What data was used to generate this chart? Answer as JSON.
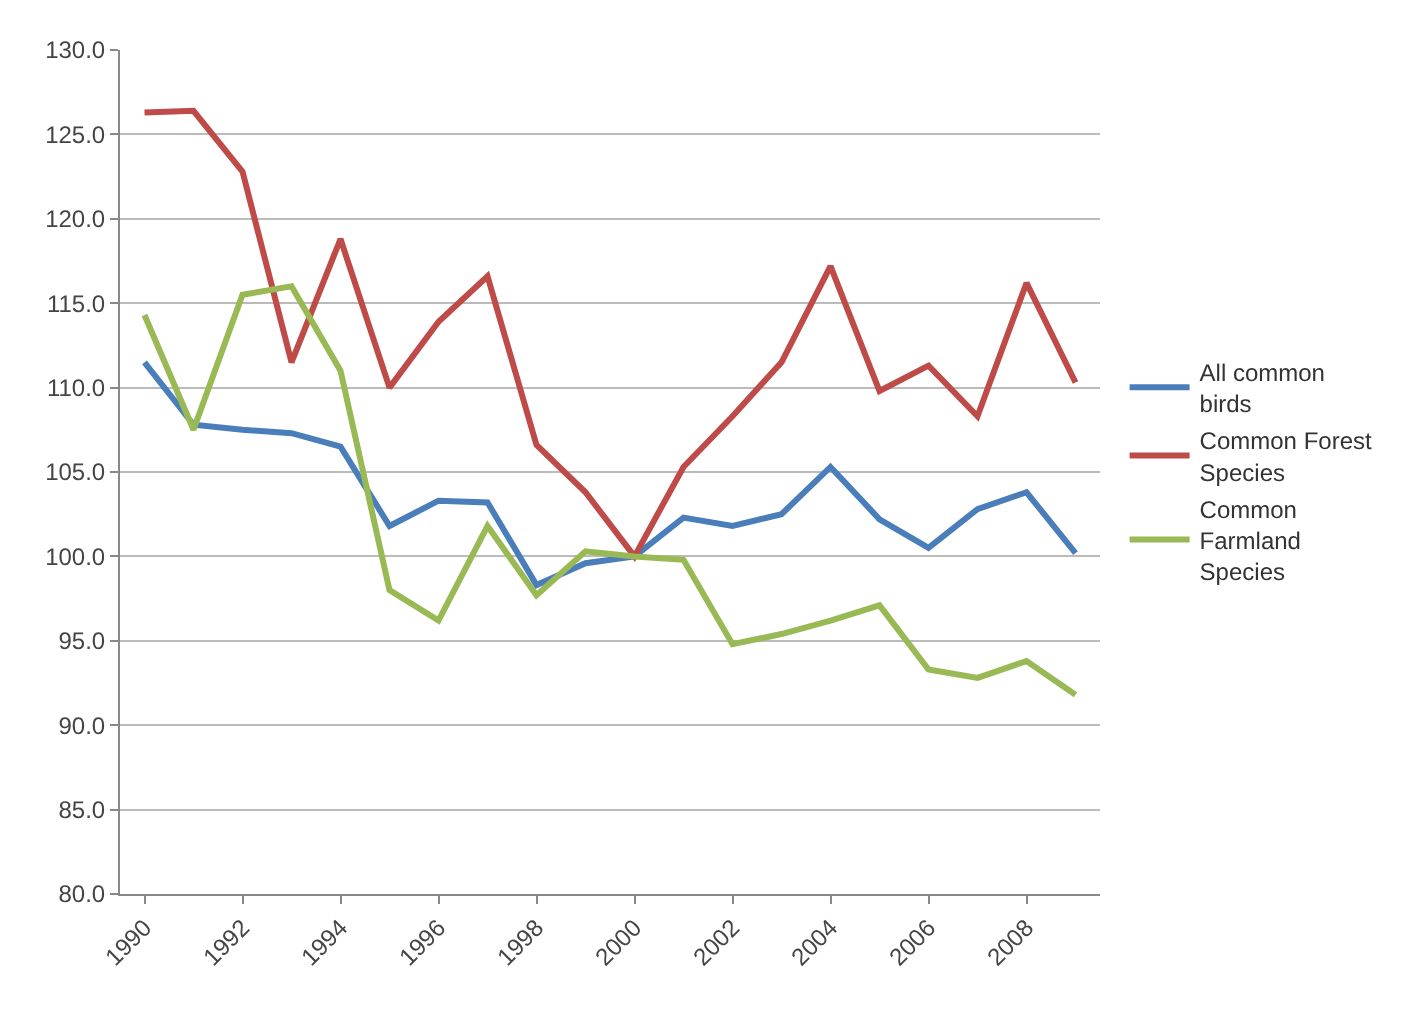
{
  "chart_data": {
    "type": "line",
    "categories": [
      "1990",
      null,
      "1992",
      null,
      "1994",
      null,
      "1996",
      null,
      "1998",
      null,
      "2000",
      null,
      "2002",
      null,
      "2004",
      null,
      "2006",
      null,
      "2008",
      null
    ],
    "series": [
      {
        "name": "All common birds",
        "color": "#4a7ebb",
        "values": [
          111.5,
          107.8,
          107.5,
          107.3,
          106.5,
          101.8,
          103.3,
          103.2,
          98.3,
          99.6,
          100.0,
          102.3,
          101.8,
          102.5,
          105.3,
          102.2,
          100.5,
          102.8,
          103.8,
          100.2
        ]
      },
      {
        "name": "Common Forest Species",
        "color": "#be4b48",
        "values": [
          126.3,
          126.4,
          122.8,
          111.5,
          118.8,
          110.0,
          113.9,
          116.6,
          106.6,
          103.8,
          100.0,
          105.3,
          108.3,
          111.5,
          117.2,
          109.8,
          111.3,
          108.3,
          116.2,
          110.3
        ]
      },
      {
        "name": "Common Farmland Species",
        "color": "#98b954",
        "values": [
          114.3,
          107.5,
          115.5,
          116.0,
          111.0,
          98.0,
          96.2,
          101.8,
          97.7,
          100.3,
          100.0,
          99.8,
          94.8,
          95.4,
          96.2,
          97.1,
          93.3,
          92.8,
          93.8,
          91.8
        ]
      }
    ],
    "ylim": [
      80,
      130
    ],
    "yticks": [
      {
        "value": 80,
        "label": "80.0"
      },
      {
        "value": 85,
        "label": "85.0"
      },
      {
        "value": 90,
        "label": "90.0"
      },
      {
        "value": 95,
        "label": "95.0"
      },
      {
        "value": 100,
        "label": "100.0"
      },
      {
        "value": 105,
        "label": "105.0"
      },
      {
        "value": 110,
        "label": "110.0"
      },
      {
        "value": 115,
        "label": "115.0"
      },
      {
        "value": 120,
        "label": "120.0"
      },
      {
        "value": 125,
        "label": "125.0"
      },
      {
        "value": 130,
        "label": "130.0"
      }
    ],
    "grid": "y",
    "legend": "right",
    "marker": "none",
    "line_style": "solid"
  }
}
